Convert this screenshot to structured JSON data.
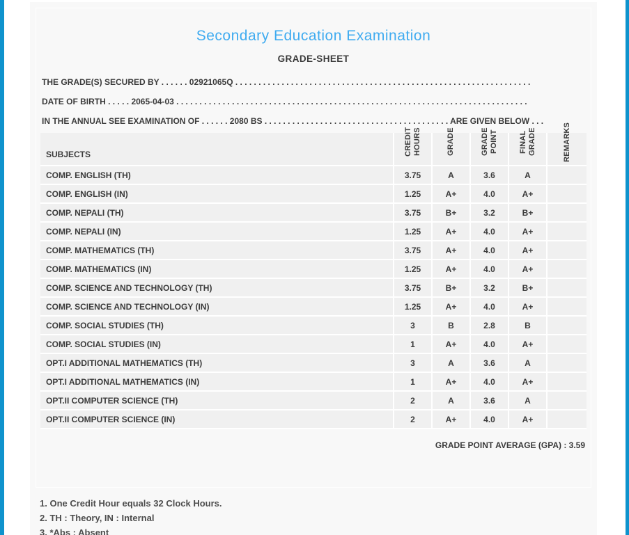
{
  "header": {
    "title": "Secondary Education Examination",
    "subtitle": "GRADE-SHEET"
  },
  "info": {
    "lines": [
      {
        "text": "THE GRADE(S) SECURED BY . . . . . . 02921065Q . . . . . . . . . . . . . . . . . . . . . . . . . . . . . . . . . . . . . . . . . . . . . . . . . . . . . . . . . . . . . . . ."
      },
      {
        "text": "DATE OF BIRTH . . . . . 2065-04-03 . . . . . . . . . . . . . . . . . . . . . . . . . . . . . . . . . . . . . . . . . . . . . . . . . . . . . . . . . . . . . . . . . . . . . . . . . . . ."
      },
      {
        "text": "IN THE ANNUAL SEE EXAMINATION OF . . . . . . 2080 BS . . . . . . . . . . . . . . . . . . . . . . . . . . . . . . . . . . . . . . . . ARE GIVEN BELOW . . ."
      }
    ],
    "symbol_number": "02921065Q",
    "date_of_birth": "2065-04-03",
    "examination_year": "2080 BS"
  },
  "table": {
    "columns": [
      "SUBJECTS",
      "CREDIT HOURS",
      "GRADE",
      "GRADE POINT",
      "FINAL GRADE",
      "REMARKS"
    ],
    "rows": [
      {
        "subject": "COMP. ENGLISH (TH)",
        "credit_hours": "3.75",
        "grade": "A",
        "grade_point": "3.6",
        "final_grade": "A",
        "remarks": ""
      },
      {
        "subject": "COMP. ENGLISH (IN)",
        "credit_hours": "1.25",
        "grade": "A+",
        "grade_point": "4.0",
        "final_grade": "A+",
        "remarks": ""
      },
      {
        "subject": "COMP. NEPALI (TH)",
        "credit_hours": "3.75",
        "grade": "B+",
        "grade_point": "3.2",
        "final_grade": "B+",
        "remarks": ""
      },
      {
        "subject": "COMP. NEPALI (IN)",
        "credit_hours": "1.25",
        "grade": "A+",
        "grade_point": "4.0",
        "final_grade": "A+",
        "remarks": ""
      },
      {
        "subject": "COMP. MATHEMATICS (TH)",
        "credit_hours": "3.75",
        "grade": "A+",
        "grade_point": "4.0",
        "final_grade": "A+",
        "remarks": ""
      },
      {
        "subject": "COMP. MATHEMATICS (IN)",
        "credit_hours": "1.25",
        "grade": "A+",
        "grade_point": "4.0",
        "final_grade": "A+",
        "remarks": ""
      },
      {
        "subject": "COMP. SCIENCE AND TECHNOLOGY (TH)",
        "credit_hours": "3.75",
        "grade": "B+",
        "grade_point": "3.2",
        "final_grade": "B+",
        "remarks": ""
      },
      {
        "subject": "COMP. SCIENCE AND TECHNOLOGY (IN)",
        "credit_hours": "1.25",
        "grade": "A+",
        "grade_point": "4.0",
        "final_grade": "A+",
        "remarks": ""
      },
      {
        "subject": "COMP. SOCIAL STUDIES (TH)",
        "credit_hours": "3",
        "grade": "B",
        "grade_point": "2.8",
        "final_grade": "B",
        "remarks": ""
      },
      {
        "subject": "COMP. SOCIAL STUDIES (IN)",
        "credit_hours": "1",
        "grade": "A+",
        "grade_point": "4.0",
        "final_grade": "A+",
        "remarks": ""
      },
      {
        "subject": "OPT.I ADDITIONAL MATHEMATICS (TH)",
        "credit_hours": "3",
        "grade": "A",
        "grade_point": "3.6",
        "final_grade": "A",
        "remarks": ""
      },
      {
        "subject": "OPT.I ADDITIONAL MATHEMATICS (IN)",
        "credit_hours": "1",
        "grade": "A+",
        "grade_point": "4.0",
        "final_grade": "A+",
        "remarks": ""
      },
      {
        "subject": "OPT.II COMPUTER SCIENCE (TH)",
        "credit_hours": "2",
        "grade": "A",
        "grade_point": "3.6",
        "final_grade": "A",
        "remarks": ""
      },
      {
        "subject": "OPT.II COMPUTER SCIENCE (IN)",
        "credit_hours": "2",
        "grade": "A+",
        "grade_point": "4.0",
        "final_grade": "A+",
        "remarks": ""
      }
    ]
  },
  "summary": {
    "gpa_text": "GRADE POINT AVERAGE (GPA) : 3.59",
    "gpa_value": "3.59"
  },
  "footnotes": [
    "1. One Credit Hour equals 32 Clock Hours.",
    "2. TH : Theory, IN : Internal",
    "3. *Abs : Absent"
  ],
  "colors": {
    "accent_blue": "#0f93cd",
    "title_blue": "#3fabf0",
    "card_background": "#f8f8f8",
    "row_background": "#f0f0f0",
    "text": "#3b3b3b"
  }
}
